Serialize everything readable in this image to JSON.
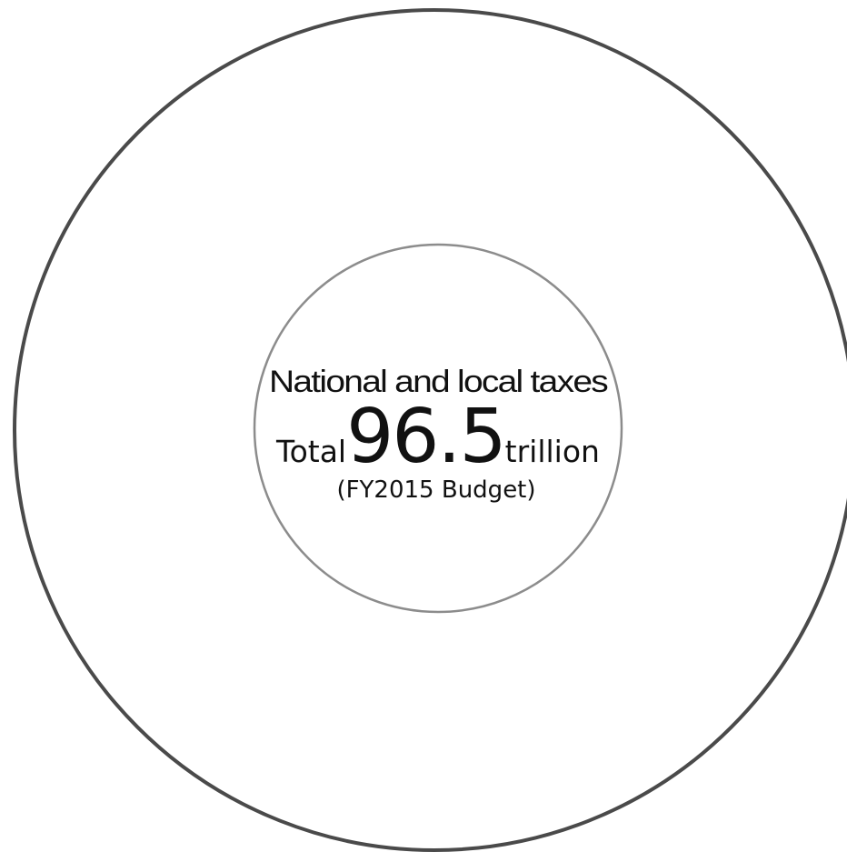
{
  "center": {
    "heading": "National and local taxes",
    "total_label": "Total",
    "total_value": "96.5",
    "total_unit": "trillion",
    "note": "(FY2015 Budget)"
  },
  "colors": {
    "outer_ring": "#4a4a4a",
    "inner_ring": "#8c8c8c",
    "text": "#111111",
    "background": "#ffffff"
  }
}
